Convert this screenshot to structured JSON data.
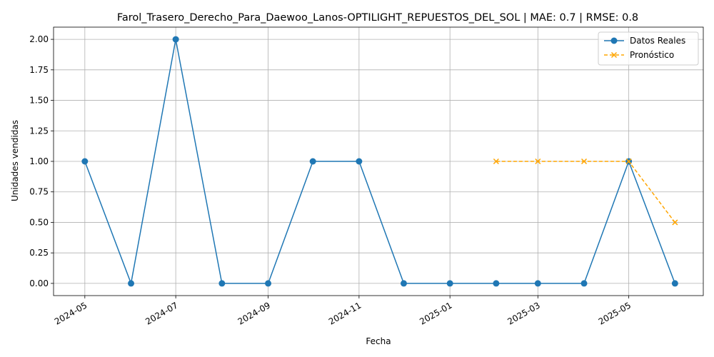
{
  "chart_data": {
    "type": "line",
    "title": "Farol_Trasero_Derecho_Para_Daewoo_Lanos-OPTILIGHT_REPUESTOS_DEL_SOL | MAE: 0.7 | RMSE: 0.8",
    "xlabel": "Fecha",
    "ylabel": "Unidades vendidas",
    "grid": true,
    "legend_position": "top-right",
    "x_axis": "date",
    "xlim": [
      "2024-04-10",
      "2025-06-20"
    ],
    "ylim": [
      -0.1,
      2.1
    ],
    "x_ticks": [
      "2024-05",
      "2024-07",
      "2024-09",
      "2024-11",
      "2025-01",
      "2025-03",
      "2025-05"
    ],
    "y_ticks": [
      "0.00",
      "0.25",
      "0.50",
      "0.75",
      "1.00",
      "1.25",
      "1.50",
      "1.75",
      "2.00"
    ],
    "series": [
      {
        "name": "Datos Reales",
        "color": "#1f77b4",
        "style": "solid",
        "marker": "circle",
        "points": [
          {
            "x": "2024-05-01",
            "y": 1
          },
          {
            "x": "2024-06-01",
            "y": 0
          },
          {
            "x": "2024-07-01",
            "y": 2
          },
          {
            "x": "2024-08-01",
            "y": 0
          },
          {
            "x": "2024-09-01",
            "y": 0
          },
          {
            "x": "2024-10-01",
            "y": 1
          },
          {
            "x": "2024-11-01",
            "y": 1
          },
          {
            "x": "2024-12-01",
            "y": 0
          },
          {
            "x": "2025-01-01",
            "y": 0
          },
          {
            "x": "2025-02-01",
            "y": 0
          },
          {
            "x": "2025-03-01",
            "y": 0
          },
          {
            "x": "2025-04-01",
            "y": 0
          },
          {
            "x": "2025-05-01",
            "y": 1
          },
          {
            "x": "2025-06-01",
            "y": 0
          }
        ]
      },
      {
        "name": "Pronóstico",
        "color": "#ffa500",
        "style": "dashed",
        "marker": "x",
        "points": [
          {
            "x": "2025-02-01",
            "y": 1
          },
          {
            "x": "2025-03-01",
            "y": 1
          },
          {
            "x": "2025-04-01",
            "y": 1
          },
          {
            "x": "2025-05-01",
            "y": 1
          },
          {
            "x": "2025-06-01",
            "y": 0.5
          }
        ]
      }
    ]
  }
}
